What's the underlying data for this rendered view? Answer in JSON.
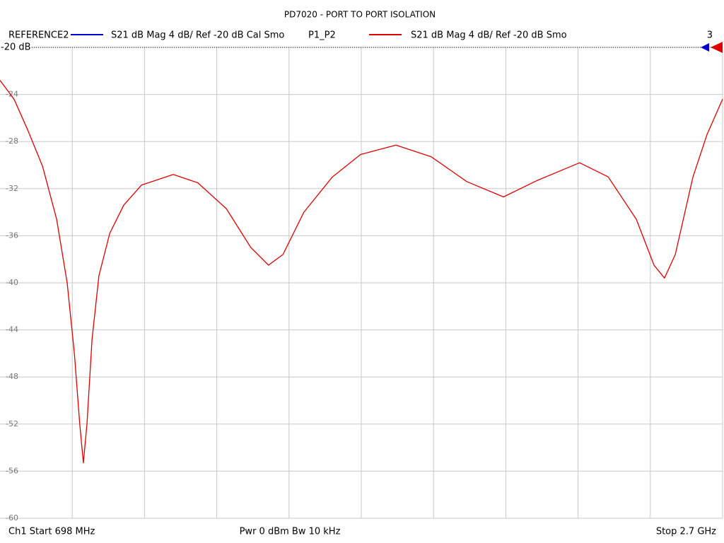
{
  "chart_data": {
    "type": "line",
    "title": "PD7020 - PORT TO PORT ISOLATION",
    "reference_trace": {
      "name": "REFERENCE2",
      "description": "S21  dB Mag  4 dB/ Ref -20 dB  Cal Smo",
      "color": "#0000cc"
    },
    "series": [
      {
        "name": "P1_P2",
        "description": "S21  dB Mag  4 dB/ Ref -20 dB  Smo",
        "color": "#dd0000",
        "x": [
          698,
          737,
          776,
          816,
          855,
          884,
          904,
          919,
          929,
          939,
          953,
          972,
          1002,
          1041,
          1090,
          1178,
          1246,
          1325,
          1393,
          1442,
          1482,
          1540,
          1619,
          1697,
          1795,
          1893,
          1991,
          2093,
          2187,
          2304,
          2383,
          2461,
          2510,
          2539,
          2569,
          2618,
          2657,
          2700
        ],
        "values": [
          -22.8,
          -24.4,
          -27.1,
          -30.1,
          -34.6,
          -40,
          -46,
          -52,
          -55.3,
          -52,
          -44.8,
          -39.4,
          -35.8,
          -33.4,
          -31.7,
          -30.8,
          -31.5,
          -33.7,
          -37,
          -38.5,
          -37.6,
          -34,
          -31,
          -29.1,
          -28.3,
          -29.3,
          -31.4,
          -32.7,
          -31.3,
          -29.8,
          -31,
          -34.6,
          -38.5,
          -39.6,
          -37.6,
          -31,
          -27.4,
          -24.4
        ]
      }
    ],
    "channel_number": "3",
    "reference_label": "-20 dB",
    "xlim": [
      698,
      2700
    ],
    "ylim": [
      -60,
      -20
    ],
    "yticks": [
      -60,
      -56,
      -52,
      -48,
      -44,
      -40,
      -36,
      -32,
      -28,
      -24,
      -20
    ],
    "grid": true,
    "footer": {
      "start": "Ch1  Start  698 MHz",
      "power": "Pwr  0 dBm  Bw  10 kHz",
      "stop": "Stop  2.7 GHz"
    }
  }
}
